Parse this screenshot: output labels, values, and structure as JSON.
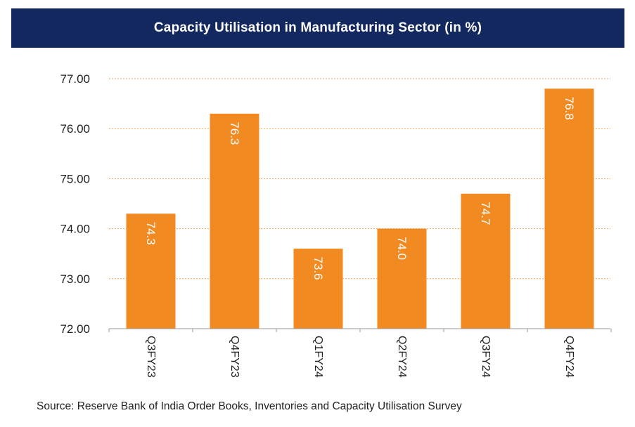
{
  "chart_data": {
    "type": "bar",
    "title": "Capacity Utilisation in Manufacturing Sector (in %)",
    "categories": [
      "Q3FY23",
      "Q4FY23",
      "Q1FY24",
      "Q2FY24",
      "Q3FY24",
      "Q4FY24"
    ],
    "values": [
      74.3,
      76.3,
      73.6,
      74.0,
      74.7,
      76.8
    ],
    "data_labels": [
      "74.3",
      "76.3",
      "73.6",
      "74.0",
      "74.7",
      "76.8"
    ],
    "ylim": [
      72,
      77
    ],
    "yticks": [
      72,
      73,
      74,
      75,
      76,
      77
    ],
    "ytick_labels": [
      "72.00",
      "73.00",
      "74.00",
      "75.00",
      "76.00",
      "77.00"
    ],
    "xlabel": "",
    "ylabel": "",
    "grid": true,
    "legend": "none",
    "bar_color": "#f28a22",
    "grid_color": "#f2a25a",
    "title_bg_color": "#13285f"
  },
  "source": "Source: Reserve Bank of India Order Books, Inventories and Capacity Utilisation Survey"
}
